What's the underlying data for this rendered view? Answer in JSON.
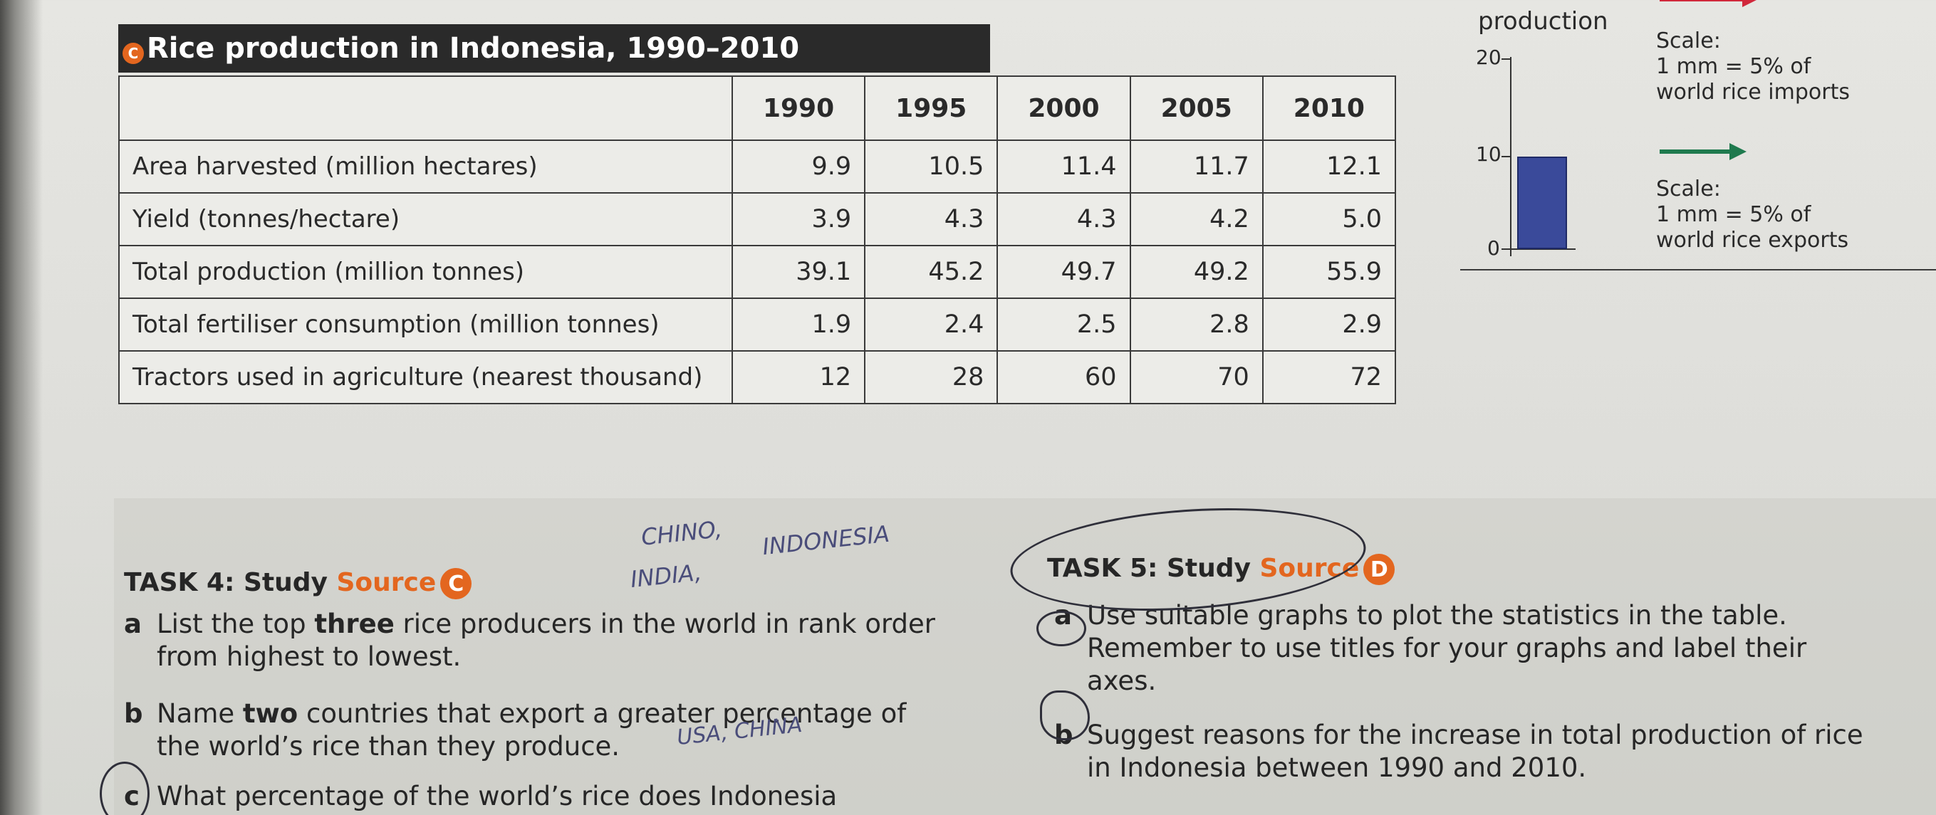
{
  "source_c": {
    "badge": "C",
    "title": "Rice production in Indonesia, 1990–2010",
    "years": [
      "1990",
      "1995",
      "2000",
      "2005",
      "2010"
    ],
    "rows": [
      {
        "label": "Area harvested (million hectares)",
        "values": [
          "9.9",
          "10.5",
          "11.4",
          "11.7",
          "12.1"
        ]
      },
      {
        "label": "Yield (tonnes/hectare)",
        "values": [
          "3.9",
          "4.3",
          "4.3",
          "4.2",
          "5.0"
        ]
      },
      {
        "label": "Total production (million tonnes)",
        "values": [
          "39.1",
          "45.2",
          "49.7",
          "49.2",
          "55.9"
        ]
      },
      {
        "label": "Total fertiliser consumption (million tonnes)",
        "values": [
          "1.9",
          "2.4",
          "2.5",
          "2.8",
          "2.9"
        ]
      },
      {
        "label": "Tractors used in agriculture (nearest thousand)",
        "values": [
          "12",
          "28",
          "60",
          "70",
          "72"
        ]
      }
    ]
  },
  "source_d": {
    "axis_label": "production",
    "ticks": [
      "20",
      "10",
      "0"
    ],
    "bar_value": 10,
    "scale_imports": [
      "Scale:",
      "1 mm = 5% of",
      "world rice imports"
    ],
    "scale_exports": [
      "Scale:",
      "1 mm = 5% of",
      "world rice exports"
    ],
    "colors": {
      "imports_arrow": "#d1283b",
      "exports_arrow": "#1f7a4e",
      "bar": "#3a4a9a"
    }
  },
  "task4": {
    "heading": "TASK 4: Study ",
    "source_word": "Source",
    "badge": "C",
    "a": {
      "letter": "a",
      "pre": "List the top ",
      "bold": "three",
      "post": " rice producers in the world in rank order",
      "line2": "from highest to lowest."
    },
    "b": {
      "letter": "b",
      "pre": "Name ",
      "bold": "two",
      "post": " countries that export a greater percentage of",
      "line2": "the world’s rice than they produce."
    },
    "c": {
      "letter": "c",
      "text": "What percentage of the world’s rice does Indonesia"
    }
  },
  "task5": {
    "heading": "TASK 5: Study ",
    "source_word": "Source",
    "badge": "D",
    "a": {
      "letter": "a",
      "line1": "Use suitable graphs to plot the statistics in the table.",
      "line2": "Remember to use titles for your graphs and label their",
      "line3": "axes."
    },
    "b": {
      "letter": "b",
      "line1": "Suggest reasons for the increase in total production of rice",
      "line2": "in Indonesia between 1990 and 2010."
    }
  },
  "handwriting": {
    "note1": "CHINO,",
    "note2": "INDONESIA",
    "note3": "INDIA,",
    "note4": "USA, CHINA"
  }
}
